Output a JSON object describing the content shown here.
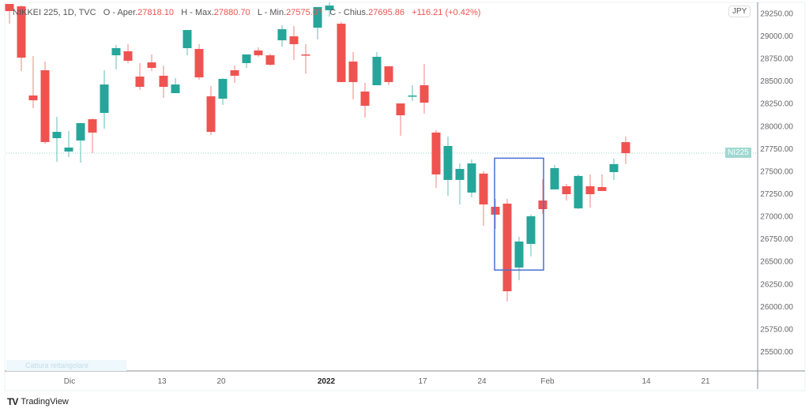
{
  "legend": {
    "symbol": "NIKKEI 225, 1D, TVC",
    "open_label": "O - Aper.",
    "open": "27818.10",
    "high_label": "H - Max.",
    "high": "27880.70",
    "low_label": "L - Min.",
    "low": "27575.07",
    "close_label": "C - Chius.",
    "close": "27695.86",
    "change": "+116.21 (+0.42%)"
  },
  "currency_badge": "JPY",
  "last_price_label": "NI225",
  "tooltip_text": "Cattura rettangolare",
  "branding": "TradingView",
  "colors": {
    "up": "#26a69a",
    "down": "#ef5350",
    "annotation": "#4a6fd6",
    "price_line": "#9fd8d1"
  },
  "chart_data": {
    "type": "candlestick",
    "ylim": [
      25250,
      29300
    ],
    "y_ticks": [
      "25500.00",
      "25750.00",
      "26000.00",
      "26250.00",
      "26500.00",
      "26750.00",
      "27000.00",
      "27250.00",
      "27500.00",
      "27750.00",
      "28000.00",
      "28250.00",
      "28500.00",
      "28750.00",
      "29000.00",
      "29250.00"
    ],
    "x_ticks": [
      "Dic",
      "13",
      "20",
      "2022",
      "17",
      "24",
      "Feb",
      "14",
      "21"
    ],
    "grid": false,
    "last_price": 27695.86,
    "candles": [
      [
        29350,
        29350,
        29131,
        29271
      ],
      [
        29324,
        29332,
        28606,
        28755
      ],
      [
        28335,
        28772,
        28195,
        28282
      ],
      [
        28615,
        28711,
        27801,
        27819
      ],
      [
        27862,
        28099,
        27600,
        27932
      ],
      [
        27714,
        27941,
        27652,
        27758
      ],
      [
        27836,
        28029,
        27591,
        28029
      ],
      [
        28072,
        28081,
        27696,
        27924
      ],
      [
        28142,
        28615,
        27967,
        28457
      ],
      [
        28781,
        28895,
        28624,
        28860
      ],
      [
        28825,
        28904,
        28694,
        28720
      ],
      [
        28545,
        28694,
        28396,
        28431
      ],
      [
        28702,
        28790,
        28606,
        28641
      ],
      [
        28554,
        28667,
        28309,
        28431
      ],
      [
        28361,
        28527,
        28361,
        28457
      ],
      [
        28860,
        29061,
        28781,
        29061
      ],
      [
        28851,
        28904,
        28510,
        28536
      ],
      [
        28326,
        28440,
        27897,
        27932
      ],
      [
        28300,
        28527,
        28230,
        28519
      ],
      [
        28615,
        28667,
        28475,
        28554
      ],
      [
        28694,
        28790,
        28641,
        28790
      ],
      [
        28834,
        28869,
        28764,
        28781
      ],
      [
        28781,
        28799,
        28667,
        28676
      ],
      [
        28947,
        29114,
        28877,
        29070
      ],
      [
        28991,
        29105,
        28729,
        28904
      ],
      [
        28790,
        28904,
        28580,
        28781
      ],
      [
        29087,
        29315,
        28956,
        29315
      ],
      [
        29280,
        29367,
        29210,
        29332
      ],
      [
        29131,
        29149,
        28484,
        28484
      ],
      [
        28711,
        28816,
        28291,
        28484
      ],
      [
        28379,
        28475,
        28090,
        28221
      ],
      [
        28449,
        28816,
        28449,
        28764
      ],
      [
        28659,
        28659,
        28449,
        28484
      ],
      [
        28247,
        28247,
        27889,
        28116
      ],
      [
        28326,
        28449,
        28274,
        28335
      ],
      [
        28449,
        28685,
        28134,
        28256
      ],
      [
        27924,
        27950,
        27311,
        27460
      ],
      [
        27399,
        27880,
        27224,
        27775
      ],
      [
        27399,
        27582,
        27127,
        27521
      ],
      [
        27259,
        27626,
        27206,
        27582
      ],
      [
        27469,
        27495,
        26891,
        27127
      ],
      [
        27101,
        27189,
        26856,
        27014
      ],
      [
        27136,
        27189,
        26051,
        26165
      ],
      [
        26428,
        26769,
        26288,
        26716
      ],
      [
        26690,
        27014,
        26550,
        26996
      ],
      [
        27171,
        27408,
        27023,
        27075
      ],
      [
        27294,
        27565,
        27294,
        27530
      ],
      [
        27329,
        27355,
        27171,
        27241
      ],
      [
        27084,
        27460,
        27075,
        27443
      ],
      [
        27329,
        27460,
        27093,
        27241
      ],
      [
        27320,
        27460,
        27276,
        27276
      ],
      [
        27486,
        27635,
        27399,
        27574
      ],
      [
        27818.1,
        27880.7,
        27575.07,
        27695.86
      ]
    ],
    "candle_fields": [
      "open",
      "high",
      "low",
      "close"
    ],
    "annotation": {
      "type": "rectangle",
      "from_candle": 42,
      "to_candle": 44,
      "price_top": 27640,
      "price_bottom": 26400
    }
  }
}
